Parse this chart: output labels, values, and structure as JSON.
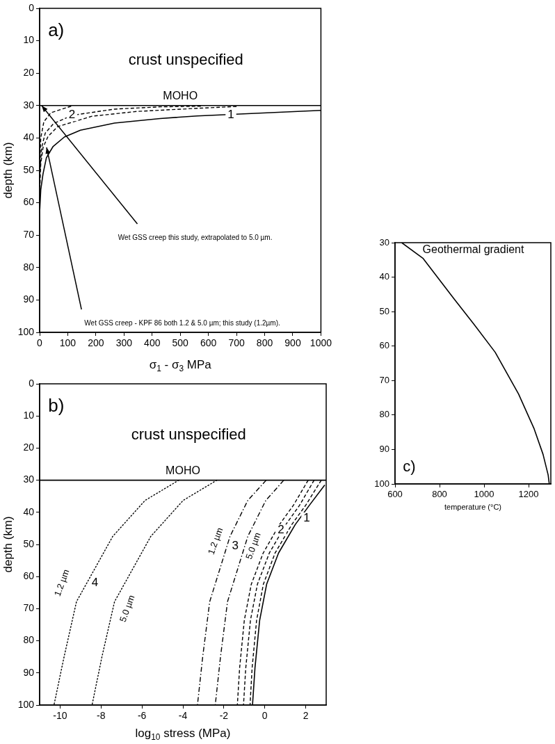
{
  "chart_data": [
    {
      "type": "line",
      "xlabel": "σ$_{1}$ - σ$_{3}$ MPa",
      "ylabel": "depth (km)",
      "xlim": [
        0,
        1000
      ],
      "ylim": [
        100,
        0
      ],
      "xticks": [
        0,
        100,
        200,
        300,
        400,
        500,
        600,
        700,
        800,
        900,
        1000
      ],
      "yticks": [
        0,
        10,
        20,
        30,
        40,
        50,
        60,
        70,
        80,
        90,
        100
      ],
      "series": [
        {
          "color": "#000000",
          "line_style": "solid",
          "x": [
            1000,
            560,
            428,
            266,
            145,
            88,
            48,
            24,
            12,
            4,
            0.5
          ],
          "values": [
            31.5,
            33.2,
            34,
            35.4,
            37.6,
            39.7,
            42.6,
            46.1,
            51.1,
            56,
            62
          ]
        },
        {
          "color": "#000000",
          "line_style": "dashed",
          "x": [
            700,
            573,
            347,
            186,
            64,
            30,
            12,
            4,
            1
          ],
          "values": [
            30.3,
            30.8,
            31.8,
            33.3,
            36.5,
            39.5,
            43,
            48,
            55
          ]
        },
        {
          "color": "#000000",
          "line_style": "dashed",
          "x": [
            573,
            428,
            266,
            117,
            50,
            20,
            7,
            1.5
          ],
          "values": [
            30.2,
            30.4,
            31.1,
            33,
            35.5,
            38.5,
            43,
            50
          ]
        },
        {
          "color": "#000000",
          "line_style": "dashed",
          "x": [
            112,
            40,
            15,
            4,
            0.8
          ],
          "values": [
            30.2,
            32.2,
            35,
            40,
            48
          ]
        }
      ],
      "ref_lines": [
        {
          "axis": "y",
          "value": 30,
          "label": "MOHO"
        }
      ],
      "annotations": [
        "a)",
        "crust unspecified",
        {
          "text": "1",
          "x": 680,
          "y": 32.9
        },
        {
          "text": "2",
          "x": 115,
          "y": 33
        },
        "Wet GSS creep this study, extrapolated to 5.0 µm.",
        "Wet GSS creep - KPF 86 both 1.2 & 5.0 µm; this study (1.2µm)."
      ]
    },
    {
      "type": "line",
      "xlabel": "log$_{10}$ stress (MPa)",
      "ylabel": "depth (km)",
      "xlim": [
        -11,
        3
      ],
      "ylim": [
        100,
        0
      ],
      "xticks": [
        -10,
        -8,
        -6,
        -4,
        -2,
        0,
        2
      ],
      "yticks": [
        0,
        10,
        20,
        30,
        40,
        50,
        60,
        70,
        80,
        90,
        100
      ],
      "series": [
        {
          "color": "#000000",
          "line_style": "solid",
          "x": [
            2.93,
            2.18,
            1.49,
            0.67,
            0.09,
            -0.25,
            -0.48,
            -0.6
          ],
          "values": [
            31.5,
            37.8,
            43.8,
            52.7,
            62.4,
            73.6,
            88.5,
            100
          ]
        },
        {
          "color": "#000000",
          "line_style": "dashed",
          "x": [
            2.76,
            2.0,
            1.32,
            0.5,
            -0.07,
            -0.4,
            -0.62,
            -0.72
          ],
          "values": [
            30,
            37.8,
            43.8,
            52.7,
            62.4,
            73.6,
            88.5,
            100
          ]
        },
        {
          "color": "#000000",
          "line_style": "dashed",
          "x": [
            2.41,
            1.7,
            1.03,
            0.22,
            -0.36,
            -0.7,
            -0.93,
            -1.04
          ],
          "values": [
            30,
            37.8,
            43.8,
            52.7,
            62.4,
            73.6,
            88.5,
            100
          ]
        },
        {
          "color": "#000000",
          "line_style": "dashed",
          "x": [
            2.12,
            1.4,
            0.72,
            -0.08,
            -0.66,
            -1.0,
            -1.23,
            -1.34
          ],
          "values": [
            30,
            37.8,
            43.8,
            52.7,
            62.4,
            73.6,
            88.5,
            100
          ]
        },
        {
          "color": "#000000",
          "line_style": "dashdot",
          "x": [
            0.93,
            0.05,
            -0.83,
            -1.82,
            -2.16,
            -2.42
          ],
          "values": [
            30,
            36.3,
            47.5,
            67.8,
            84.8,
            100
          ]
        },
        {
          "color": "#000000",
          "line_style": "dashdot",
          "x": [
            0.07,
            -0.83,
            -1.7,
            -2.69,
            -3.03,
            -3.29
          ],
          "values": [
            30,
            36.3,
            47.5,
            67.8,
            84.8,
            100
          ]
        },
        {
          "color": "#000000",
          "line_style": "dotted",
          "x": [
            -2.34,
            -3.99,
            -5.57,
            -7.34,
            -7.95,
            -8.44
          ],
          "values": [
            30,
            36.3,
            47.5,
            67.8,
            84.8,
            100
          ]
        },
        {
          "color": "#000000",
          "line_style": "dotted",
          "x": [
            -4.2,
            -5.85,
            -7.43,
            -9.2,
            -9.8,
            -10.3
          ],
          "values": [
            30,
            36.3,
            47.5,
            67.8,
            84.8,
            100
          ]
        }
      ],
      "ref_lines": [
        {
          "axis": "y",
          "value": 30,
          "label": "MOHO"
        }
      ],
      "annotations": [
        "b)",
        "crust unspecified",
        {
          "text": "1",
          "x": 2.05,
          "y": 41.9
        },
        {
          "text": "2",
          "x": 0.79,
          "y": 45.6
        },
        {
          "text": "3",
          "x": -1.44,
          "y": 50.5
        },
        "4",
        "1.2 µm",
        "5.0 µm",
        "1.2 µm",
        "5.0 µm"
      ]
    },
    {
      "type": "line",
      "xlabel": "temperature (°C)",
      "xlim": [
        600,
        1300
      ],
      "ylim": [
        100,
        30
      ],
      "xticks": [
        600,
        800,
        1000,
        1200
      ],
      "yticks": [
        30,
        40,
        50,
        60,
        70,
        80,
        90,
        100
      ],
      "series": [
        {
          "name": "Geothermal gradient",
          "color": "#000000",
          "line_style": "solid",
          "x": [
            630,
            725,
            865,
            955,
            1050,
            1155,
            1225,
            1265,
            1288,
            1293
          ],
          "values": [
            30,
            34.5,
            46.3,
            53.7,
            61.8,
            73.9,
            84,
            91.4,
            97.4,
            100
          ]
        }
      ],
      "annotations": [
        "c)"
      ]
    }
  ]
}
